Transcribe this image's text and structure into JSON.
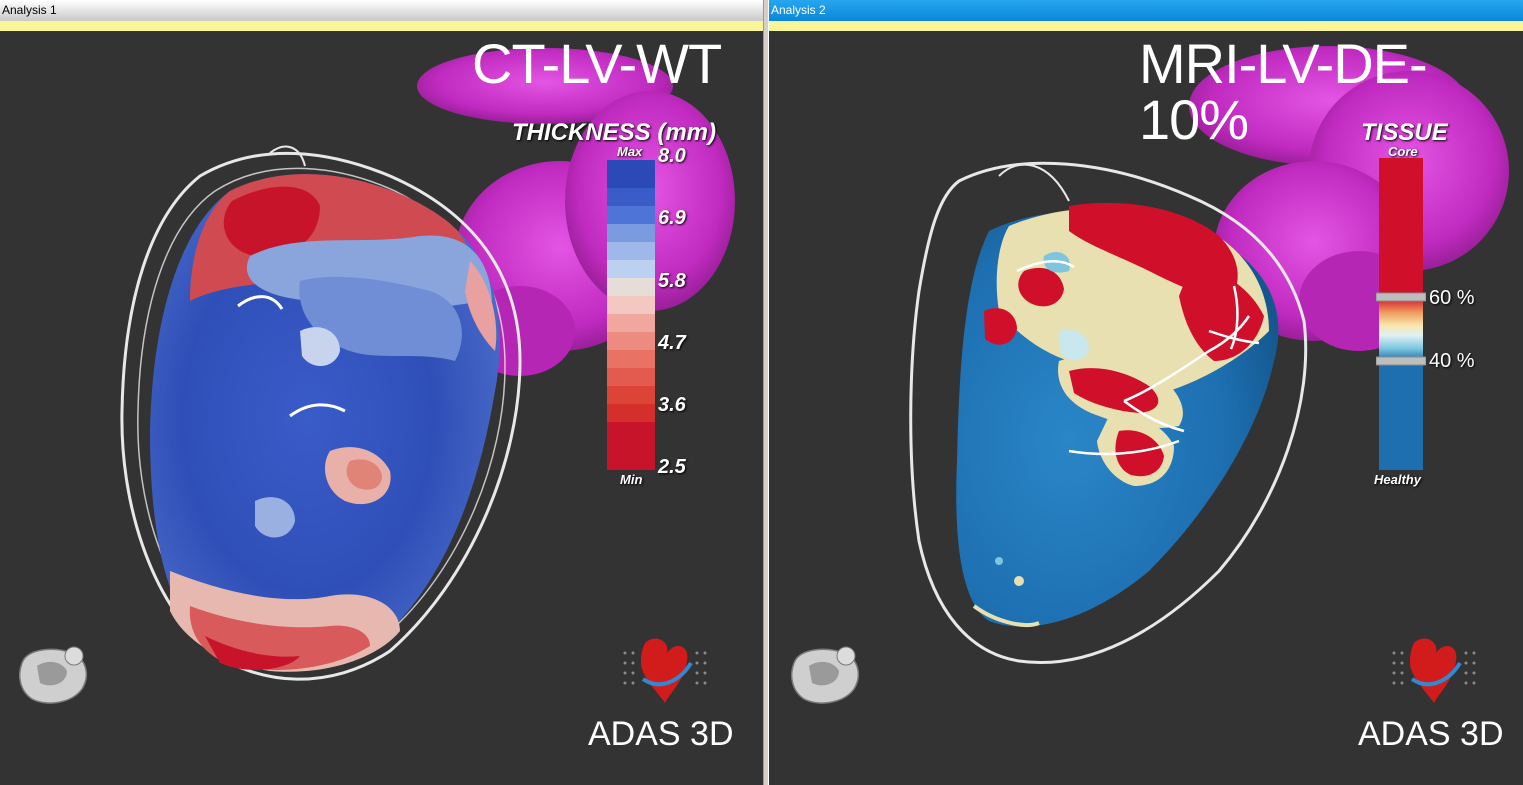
{
  "panels": [
    {
      "title": "Analysis 1",
      "mode_label": "CT-LV-WT",
      "legend": {
        "title": "THICKNESS (mm)",
        "max_label": "Max",
        "min_label": "Min",
        "ticks": [
          "8.0",
          "6.9",
          "5.8",
          "4.7",
          "3.6",
          "2.5"
        ]
      },
      "brand": "ADAS 3D"
    },
    {
      "title": "Analysis 2",
      "mode_label": "MRI-LV-DE-10%",
      "legend": {
        "title": "TISSUE",
        "top_label": "Core",
        "bottom_label": "Healthy",
        "thresholds": [
          "60 %",
          "40 %"
        ]
      },
      "brand": "ADAS 3D"
    }
  ],
  "colors": {
    "viewport_bg": "#333333",
    "active_title_bg": "#0a86d8",
    "inactive_title_bg": "#d6d6d6",
    "accent_strip": "#fbf59a",
    "atrium": "#cc33cc",
    "healthy": "#1d6fb0",
    "core": "#d0102a",
    "thick_blue": "#2c4fb8",
    "thin_red": "#c8142a"
  },
  "icons": [
    "heart-orientation-icon",
    "adas-logo-icon"
  ]
}
